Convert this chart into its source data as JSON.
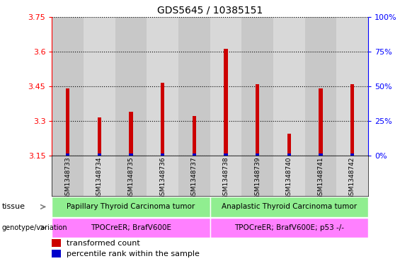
{
  "title": "GDS5645 / 10385151",
  "samples": [
    "GSM1348733",
    "GSM1348734",
    "GSM1348735",
    "GSM1348736",
    "GSM1348737",
    "GSM1348738",
    "GSM1348739",
    "GSM1348740",
    "GSM1348741",
    "GSM1348742"
  ],
  "red_values": [
    3.44,
    3.315,
    3.34,
    3.465,
    3.32,
    3.61,
    3.46,
    3.245,
    3.44,
    3.46
  ],
  "blue_values": [
    3.155,
    3.155,
    3.155,
    3.155,
    3.155,
    3.155,
    3.155,
    3.155,
    3.155,
    3.155
  ],
  "ymin": 3.15,
  "ymax": 3.75,
  "yticks_left": [
    3.15,
    3.3,
    3.45,
    3.6,
    3.75
  ],
  "yticks_right": [
    0,
    25,
    50,
    75,
    100
  ],
  "tissue_labels": [
    "Papillary Thyroid Carcinoma tumor",
    "Anaplastic Thyroid Carcinoma tumor"
  ],
  "tissue_color": "#90EE90",
  "genotype_labels": [
    "TPOCreER; BrafV600E",
    "TPOCreER; BrafV600E; p53 -/-"
  ],
  "genotype_color": "#FF80FF",
  "tissue_split": 5,
  "bar_color_red": "#CC0000",
  "bar_color_blue": "#0000CC",
  "bar_width": 0.12,
  "blue_bar_width": 0.12,
  "col_color_odd": "#C8C8C8",
  "col_color_even": "#D8D8D8",
  "legend_red": "transformed count",
  "legend_blue": "percentile rank within the sample"
}
